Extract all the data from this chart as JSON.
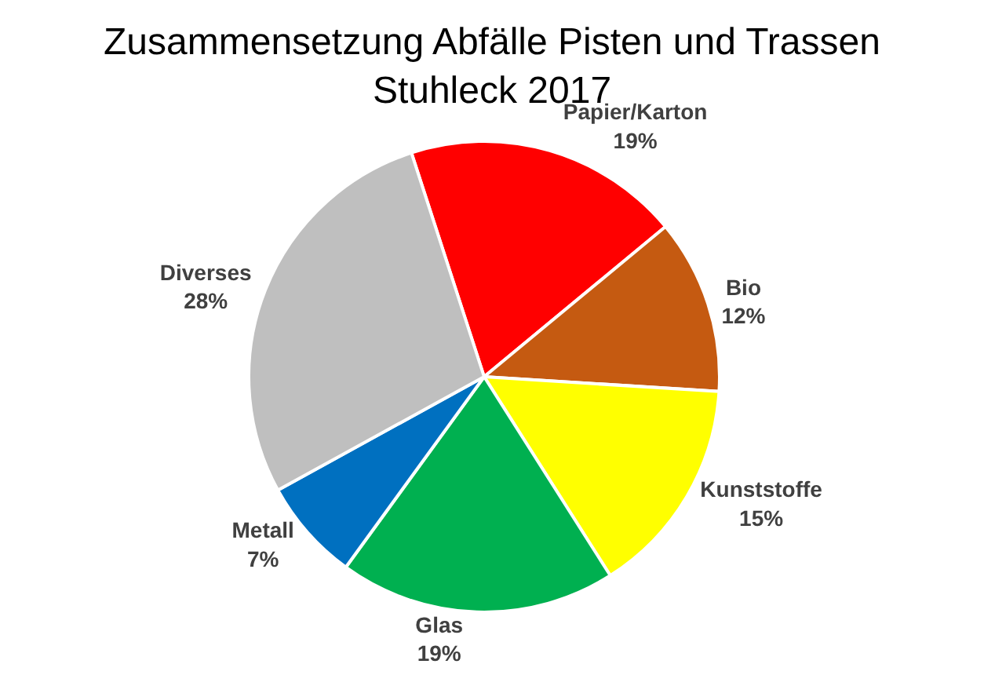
{
  "chart_data": {
    "type": "pie",
    "title": "Zusammensetzung Abfälle Pisten und Trassen\nStuhleck 2017",
    "categories": [
      "Papier/Karton",
      "Bio",
      "Kunststoffe",
      "Glas",
      "Metall",
      "Diverses"
    ],
    "values": [
      19,
      12,
      15,
      19,
      7,
      28
    ],
    "value_labels": [
      "19%",
      "12%",
      "15%",
      "19%",
      "7%",
      "28%"
    ],
    "colors": [
      "#ff0000",
      "#c55a11",
      "#ffff00",
      "#00b050",
      "#0070c0",
      "#bfbfbf"
    ],
    "legend": false
  }
}
